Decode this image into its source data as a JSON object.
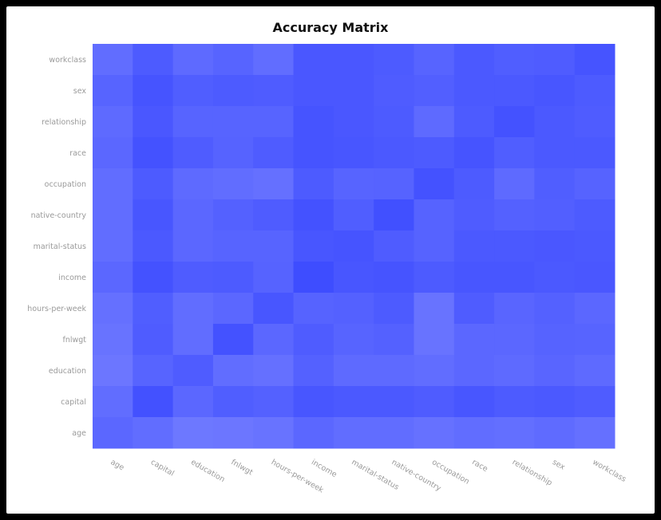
{
  "chart_data": {
    "type": "heatmap",
    "title": "Accuracy Matrix",
    "x_categories": [
      "age",
      "capital",
      "education",
      "fnlwgt",
      "hours-per-week",
      "income",
      "marital-status",
      "native-country",
      "occupation",
      "race",
      "relationship",
      "sex",
      "workclass"
    ],
    "y_categories": [
      "workclass",
      "sex",
      "relationship",
      "race",
      "occupation",
      "native-country",
      "marital-status",
      "income",
      "hours-per-week",
      "fnlwgt",
      "education",
      "capital",
      "age"
    ],
    "values": [
      [
        0.45,
        0.75,
        0.5,
        0.6,
        0.45,
        0.8,
        0.8,
        0.75,
        0.6,
        0.78,
        0.7,
        0.72,
        0.85
      ],
      [
        0.6,
        0.85,
        0.7,
        0.75,
        0.72,
        0.8,
        0.8,
        0.72,
        0.68,
        0.78,
        0.78,
        0.82,
        0.75
      ],
      [
        0.5,
        0.8,
        0.6,
        0.6,
        0.6,
        0.85,
        0.8,
        0.75,
        0.5,
        0.75,
        0.88,
        0.78,
        0.72
      ],
      [
        0.55,
        0.88,
        0.72,
        0.62,
        0.72,
        0.85,
        0.82,
        0.78,
        0.75,
        0.85,
        0.7,
        0.78,
        0.78
      ],
      [
        0.45,
        0.75,
        0.5,
        0.45,
        0.4,
        0.75,
        0.6,
        0.62,
        0.88,
        0.75,
        0.5,
        0.7,
        0.62
      ],
      [
        0.45,
        0.82,
        0.55,
        0.65,
        0.72,
        0.88,
        0.7,
        0.92,
        0.62,
        0.72,
        0.65,
        0.68,
        0.75
      ],
      [
        0.45,
        0.78,
        0.55,
        0.6,
        0.6,
        0.82,
        0.85,
        0.72,
        0.62,
        0.78,
        0.78,
        0.8,
        0.78
      ],
      [
        0.55,
        0.88,
        0.72,
        0.75,
        0.62,
        0.97,
        0.82,
        0.85,
        0.75,
        0.82,
        0.82,
        0.78,
        0.8
      ],
      [
        0.4,
        0.7,
        0.45,
        0.55,
        0.82,
        0.62,
        0.65,
        0.75,
        0.35,
        0.72,
        0.58,
        0.65,
        0.55
      ],
      [
        0.35,
        0.72,
        0.45,
        0.88,
        0.55,
        0.72,
        0.6,
        0.65,
        0.35,
        0.55,
        0.55,
        0.62,
        0.6
      ],
      [
        0.3,
        0.6,
        0.72,
        0.45,
        0.4,
        0.65,
        0.5,
        0.5,
        0.45,
        0.55,
        0.5,
        0.58,
        0.5
      ],
      [
        0.45,
        0.9,
        0.55,
        0.7,
        0.65,
        0.82,
        0.78,
        0.78,
        0.72,
        0.82,
        0.75,
        0.78,
        0.72
      ],
      [
        0.55,
        0.45,
        0.28,
        0.3,
        0.35,
        0.55,
        0.45,
        0.45,
        0.38,
        0.45,
        0.42,
        0.48,
        0.4
      ]
    ],
    "color_low": "#8089ff",
    "color_high": "#3c4bff",
    "grid": false,
    "legend": "none"
  }
}
